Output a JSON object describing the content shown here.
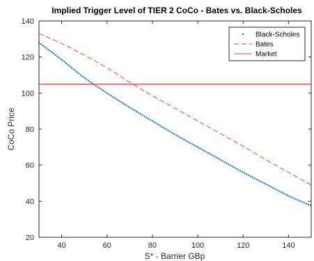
{
  "chart_data": {
    "type": "line",
    "title": "Implied Trigger Level of TIER 2 CoCo - Bates vs. Black-Scholes",
    "xlabel": "S* - Barrier GBp",
    "ylabel": "CoCo Price",
    "xlim": [
      30,
      150
    ],
    "ylim": [
      20,
      140
    ],
    "xticks": [
      40,
      60,
      80,
      100,
      120,
      140
    ],
    "yticks": [
      20,
      40,
      60,
      80,
      100,
      120,
      140
    ],
    "grid": false,
    "legend_position": "top-right",
    "series": [
      {
        "name": "Black-Scholes",
        "style": "dotted",
        "color": "#0072BD",
        "x": [
          30,
          40,
          50,
          60,
          70,
          80,
          90,
          100,
          110,
          120,
          130,
          140,
          150
        ],
        "y": [
          128,
          118.5,
          108.5,
          100,
          92,
          84.5,
          77,
          70,
          63,
          56,
          49.5,
          43,
          37.5
        ]
      },
      {
        "name": "Bates",
        "style": "dashed",
        "color": "#D95319",
        "x": [
          30,
          40,
          50,
          60,
          70,
          80,
          90,
          100,
          110,
          120,
          130,
          140,
          150
        ],
        "y": [
          133,
          127.5,
          121,
          114,
          106,
          98.5,
          91.5,
          84.5,
          77.5,
          70.5,
          63,
          56,
          49
        ]
      },
      {
        "name": "Market",
        "style": "solid",
        "color": "#E8434A",
        "x": [
          30,
          150
        ],
        "y": [
          105,
          105
        ]
      }
    ]
  }
}
